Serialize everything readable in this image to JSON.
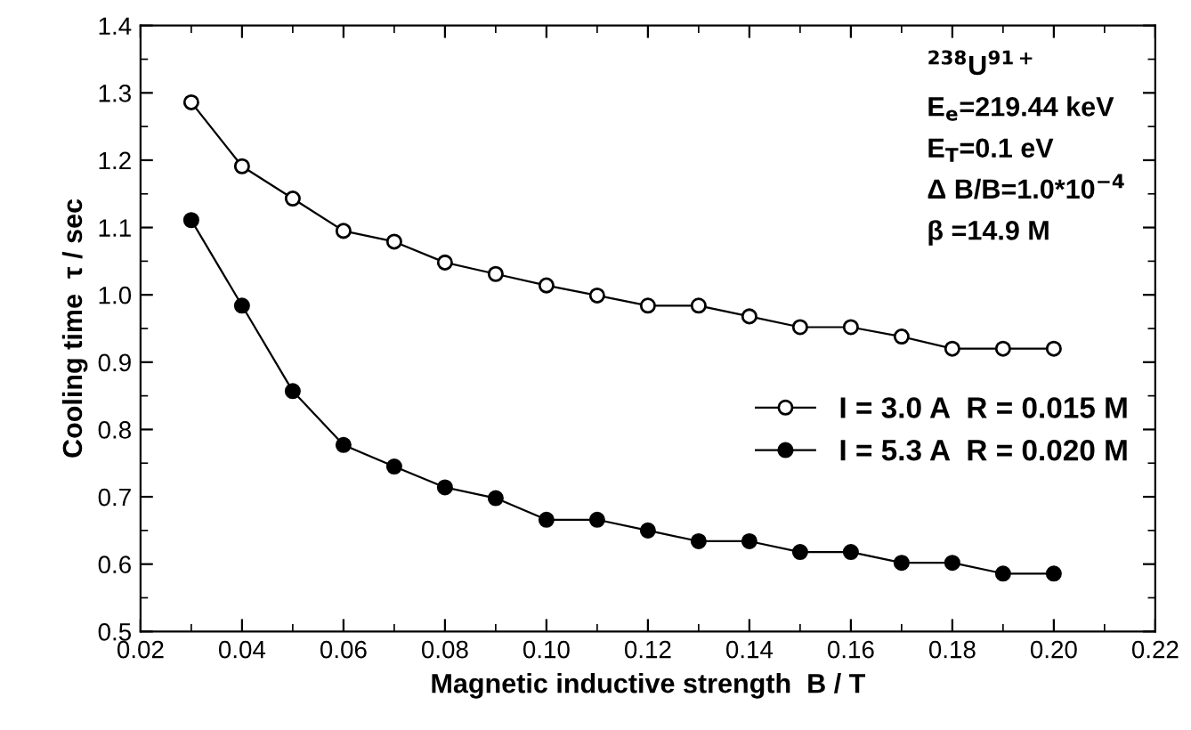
{
  "chart_data": {
    "type": "line",
    "xlabel": "Magnetic inductive strength  B / T",
    "ylabel": "Cooling time  τ / sec",
    "x": [
      0.03,
      0.04,
      0.05,
      0.06,
      0.07,
      0.08,
      0.09,
      0.1,
      0.11,
      0.12,
      0.13,
      0.14,
      0.15,
      0.16,
      0.17,
      0.18,
      0.19,
      0.2
    ],
    "series": [
      {
        "name": "I = 3.0 A  R = 0.015 M",
        "color": "#000000",
        "values": [
          1.286,
          1.191,
          1.143,
          1.095,
          1.079,
          1.048,
          1.031,
          1.014,
          0.999,
          0.984,
          0.984,
          0.968,
          0.952,
          0.952,
          0.938,
          0.92,
          0.92,
          0.92
        ]
      },
      {
        "name": "I = 5.3 A  R = 0.020 M",
        "color": "#000000",
        "values": [
          1.111,
          0.984,
          0.857,
          0.777,
          0.745,
          0.714,
          0.698,
          0.666,
          0.666,
          0.65,
          0.634,
          0.634,
          0.618,
          0.618,
          0.602,
          0.602,
          0.586,
          0.586
        ]
      }
    ],
    "annotations": [
      "$^{238}$U$^{91+}$",
      "E$_{e}$=219.44 keV",
      "E$_{T}$=0.1 eV",
      "Δ B/B=1.0*10$^{−4}$",
      "β =14.9 M"
    ],
    "xlim": [
      0.02,
      0.22
    ],
    "xticks": [
      {
        "value": 0.02,
        "label": "0.02"
      },
      {
        "value": 0.04,
        "label": "0.04"
      },
      {
        "value": 0.06,
        "label": "0.06"
      },
      {
        "value": 0.08,
        "label": "0.08"
      },
      {
        "value": 0.1,
        "label": "0.10"
      },
      {
        "value": 0.12,
        "label": "0.12"
      },
      {
        "value": 0.14,
        "label": "0.14"
      },
      {
        "value": 0.16,
        "label": "0.16"
      },
      {
        "value": 0.18,
        "label": "0.18"
      },
      {
        "value": 0.2,
        "label": "0.20"
      },
      {
        "value": 0.22,
        "label": "0.22"
      }
    ],
    "ylim": [
      0.5,
      1.4
    ],
    "yticks": [
      {
        "value": 0.5,
        "label": "0.5"
      },
      {
        "value": 0.6,
        "label": "0.6"
      },
      {
        "value": 0.7,
        "label": "0.7"
      },
      {
        "value": 0.8,
        "label": "0.8"
      },
      {
        "value": 0.9,
        "label": "0.9"
      },
      {
        "value": 1.0,
        "label": "1.0"
      },
      {
        "value": 1.1,
        "label": "1.1"
      },
      {
        "value": 1.2,
        "label": "1.2"
      },
      {
        "value": 1.3,
        "label": "1.3"
      },
      {
        "value": 1.4,
        "label": "1.4"
      }
    ],
    "grid": false,
    "legend": "center right",
    "marker": "circle",
    "line_style": "solid"
  }
}
